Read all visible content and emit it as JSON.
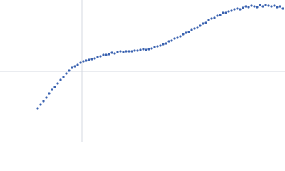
{
  "chart_data": {
    "type": "scatter",
    "x": [
      -62,
      -58,
      -54,
      -50,
      -46,
      -42,
      -38,
      -34,
      -30,
      -26,
      -22,
      -18,
      -14,
      -10,
      -6,
      -2,
      2,
      6,
      10,
      14,
      18,
      22,
      26,
      30,
      34,
      38,
      42,
      46,
      50,
      54,
      58,
      62,
      66,
      70,
      74,
      78,
      82,
      86,
      90,
      94,
      98,
      102,
      106,
      110,
      114,
      118,
      122,
      126,
      130,
      134,
      138,
      142,
      146,
      150,
      154,
      158,
      162,
      166,
      170,
      174,
      178,
      182,
      186,
      190,
      194,
      198,
      202,
      206,
      210,
      214,
      218,
      222,
      226,
      230,
      234,
      238,
      242,
      246,
      250,
      254,
      258,
      262,
      266,
      270,
      274,
      278,
      282
    ],
    "y": [
      -52,
      -47,
      -42,
      -37,
      -31,
      -26,
      -22,
      -17,
      -12,
      -8,
      -3,
      1,
      5,
      7,
      9,
      12,
      14,
      15,
      16,
      17,
      18,
      20,
      21,
      23,
      23,
      24,
      26,
      25,
      27,
      28,
      27,
      28,
      28,
      28,
      29,
      29,
      30,
      31,
      30,
      31,
      32,
      34,
      35,
      36,
      38,
      39,
      42,
      43,
      46,
      47,
      49,
      52,
      54,
      55,
      58,
      60,
      61,
      64,
      67,
      68,
      72,
      74,
      75,
      78,
      79,
      82,
      82,
      84,
      85,
      87,
      88,
      87,
      89,
      91,
      90,
      92,
      91,
      90,
      93,
      91,
      93,
      92,
      91,
      92,
      90,
      91,
      88
    ],
    "xlim": [
      -115,
      285
    ],
    "ylim": [
      -100,
      100
    ],
    "xticks": [
      0
    ],
    "yticks": [
      0
    ],
    "grid": true,
    "show_tick_labels": false,
    "color": "#3a62b0"
  }
}
